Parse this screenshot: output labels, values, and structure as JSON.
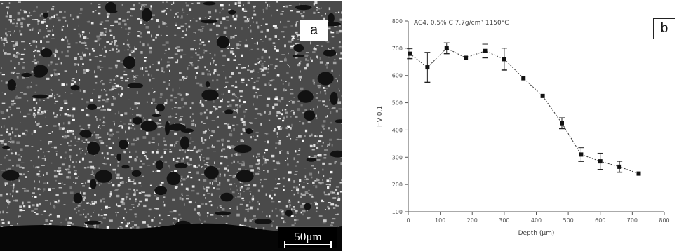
{
  "panels": {
    "a": {
      "label": "a",
      "scale_bar": "50μm"
    },
    "b": {
      "label": "b"
    }
  },
  "chart_data": {
    "type": "line",
    "title": "AC4, 0.5% C 7.7g/cm³ 1150°C",
    "xlabel": "Depth (μm)",
    "ylabel": "HV 0.1",
    "xlim": [
      0,
      800
    ],
    "ylim": [
      100,
      800
    ],
    "xticks": [
      0,
      100,
      200,
      300,
      400,
      500,
      600,
      700,
      800
    ],
    "yticks": [
      100,
      200,
      300,
      400,
      500,
      600,
      700,
      800
    ],
    "series": [
      {
        "x": [
          5,
          60,
          120,
          180,
          240,
          300,
          360,
          420,
          480,
          540,
          600,
          660,
          720
        ],
        "y": [
          680,
          630,
          700,
          665,
          690,
          660,
          590,
          525,
          425,
          310,
          285,
          265,
          240
        ],
        "yerr": [
          18,
          55,
          20,
          0,
          25,
          40,
          0,
          0,
          20,
          25,
          30,
          20,
          0
        ]
      }
    ],
    "grid": false,
    "legend": "none"
  }
}
